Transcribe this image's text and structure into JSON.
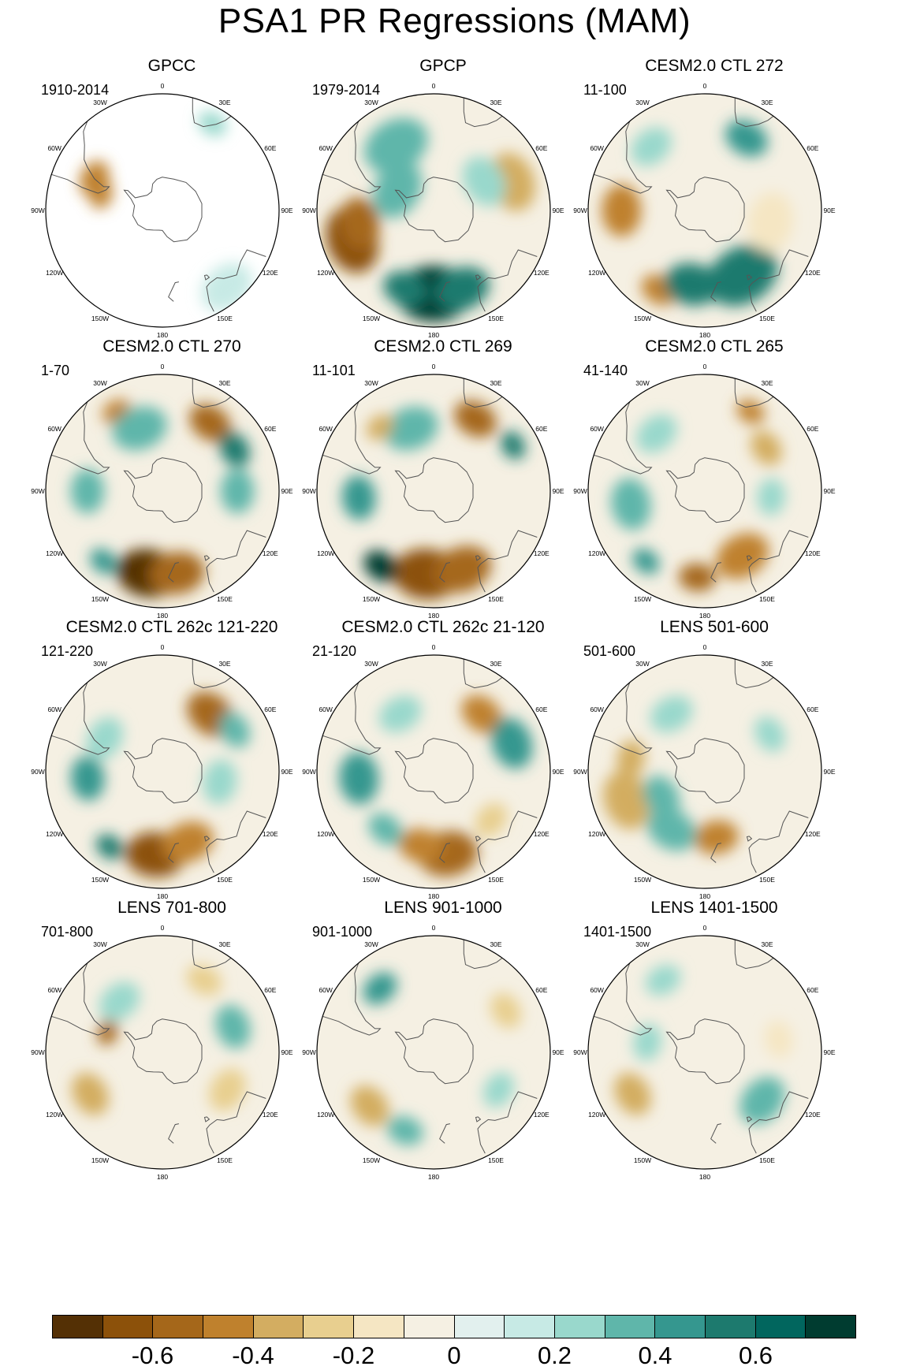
{
  "title": "PSA1 PR Regressions (MAM)",
  "lon_labels": [
    "0",
    "30E",
    "60E",
    "90E",
    "120E",
    "150E",
    "180",
    "150W",
    "120W",
    "90W",
    "60W",
    "30W"
  ],
  "panels": [
    {
      "title": "GPCC",
      "years": "1910-2014"
    },
    {
      "title": "GPCP",
      "years": "1979-2014"
    },
    {
      "title": "CESM2.0 CTL 272",
      "years": "11-100"
    },
    {
      "title": "CESM2.0 CTL 270",
      "years": "1-70"
    },
    {
      "title": "CESM2.0 CTL 269",
      "years": "11-101"
    },
    {
      "title": "CESM2.0 CTL 265",
      "years": "41-140"
    },
    {
      "title": "CESM2.0 CTL 262c 121-220",
      "years": "121-220"
    },
    {
      "title": "CESM2.0 CTL 262c 21-120",
      "years": "21-120"
    },
    {
      "title": "LENS 501-600",
      "years": "501-600"
    },
    {
      "title": "LENS 701-800",
      "years": "701-800"
    },
    {
      "title": "LENS 901-1000",
      "years": "901-1000"
    },
    {
      "title": "LENS 1401-1500",
      "years": "1401-1500"
    }
  ],
  "colorbar": {
    "colors": [
      "#543005",
      "#8c510a",
      "#a5671a",
      "#bf812d",
      "#d3ad61",
      "#e8cf8f",
      "#f5e6c3",
      "#f5f0e3",
      "#e2f0ee",
      "#c7eae5",
      "#99d8cc",
      "#5fb6aa",
      "#35978f",
      "#1d7a6e",
      "#01665e",
      "#003c30"
    ],
    "ticks": [
      "-0.6",
      "-0.4",
      "-0.2",
      "0",
      "0.2",
      "0.4",
      "0.6"
    ],
    "tick_values": [
      -0.6,
      -0.4,
      -0.2,
      0,
      0.2,
      0.4,
      0.6
    ],
    "range": [
      -0.8,
      0.8
    ]
  },
  "chart_data": {
    "type": "heatmap",
    "title": "PSA1 PR Regressions (MAM)",
    "projection": "south polar stereographic",
    "colorbar_range": [
      -0.8,
      0.8
    ],
    "colorbar_ticks": [
      -0.6,
      -0.4,
      -0.2,
      0,
      0.2,
      0.4,
      0.6
    ],
    "panels": [
      {
        "name": "GPCC",
        "period": "1910-2014",
        "features": [
          {
            "lon": -65,
            "lat": -45,
            "r": 0.1,
            "v": -0.5
          },
          {
            "lon": -75,
            "lat": -52,
            "r": 0.08,
            "v": -0.5
          },
          {
            "lon": 30,
            "lat": -30,
            "r": 0.08,
            "v": 0.2
          },
          {
            "lon": 140,
            "lat": -30,
            "r": 0.15,
            "v": 0.15
          }
        ]
      },
      {
        "name": "GPCP",
        "period": "1979-2014",
        "features": [
          {
            "lon": -110,
            "lat": -38,
            "r": 0.18,
            "v": -0.7
          },
          {
            "lon": -100,
            "lat": -45,
            "r": 0.14,
            "v": -0.55
          },
          {
            "lon": 180,
            "lat": -40,
            "r": 0.2,
            "v": 0.8
          },
          {
            "lon": 160,
            "lat": -40,
            "r": 0.15,
            "v": 0.6
          },
          {
            "lon": -160,
            "lat": -40,
            "r": 0.12,
            "v": 0.5
          },
          {
            "lon": -30,
            "lat": -45,
            "r": 0.18,
            "v": 0.3
          },
          {
            "lon": 70,
            "lat": -40,
            "r": 0.16,
            "v": -0.4
          },
          {
            "lon": 60,
            "lat": -55,
            "r": 0.14,
            "v": 0.25
          },
          {
            "lon": -60,
            "lat": -65,
            "r": 0.16,
            "v": 0.3
          }
        ]
      },
      {
        "name": "CESM2.0 CTL 272",
        "period": "11-100",
        "features": [
          {
            "lon": -90,
            "lat": -40,
            "r": 0.14,
            "v": -0.5
          },
          {
            "lon": -150,
            "lat": -35,
            "r": 0.1,
            "v": -0.5
          },
          {
            "lon": 150,
            "lat": -45,
            "r": 0.2,
            "v": 0.6
          },
          {
            "lon": -170,
            "lat": -45,
            "r": 0.15,
            "v": 0.55
          },
          {
            "lon": 30,
            "lat": -40,
            "r": 0.12,
            "v": 0.4
          },
          {
            "lon": 100,
            "lat": -50,
            "r": 0.16,
            "v": -0.2
          },
          {
            "lon": -40,
            "lat": -40,
            "r": 0.12,
            "v": 0.25
          }
        ]
      },
      {
        "name": "CESM2.0 CTL 270",
        "period": "1-70",
        "features": [
          {
            "lon": -170,
            "lat": -40,
            "r": 0.17,
            "v": -0.75
          },
          {
            "lon": 170,
            "lat": -40,
            "r": 0.15,
            "v": -0.6
          },
          {
            "lon": 35,
            "lat": -40,
            "r": 0.12,
            "v": -0.55
          },
          {
            "lon": -30,
            "lat": -35,
            "r": 0.08,
            "v": -0.5
          },
          {
            "lon": 60,
            "lat": -40,
            "r": 0.1,
            "v": 0.6
          },
          {
            "lon": -20,
            "lat": -50,
            "r": 0.15,
            "v": 0.35
          },
          {
            "lon": -90,
            "lat": -45,
            "r": 0.12,
            "v": 0.3
          },
          {
            "lon": -140,
            "lat": -35,
            "r": 0.08,
            "v": 0.45
          },
          {
            "lon": 90,
            "lat": -45,
            "r": 0.12,
            "v": 0.3
          }
        ]
      },
      {
        "name": "CESM2.0 CTL 269",
        "period": "11-101",
        "features": [
          {
            "lon": -175,
            "lat": -40,
            "r": 0.18,
            "v": -0.7
          },
          {
            "lon": 160,
            "lat": -40,
            "r": 0.16,
            "v": -0.55
          },
          {
            "lon": 30,
            "lat": -40,
            "r": 0.12,
            "v": -0.55
          },
          {
            "lon": -145,
            "lat": -35,
            "r": 0.1,
            "v": 0.7
          },
          {
            "lon": -95,
            "lat": -45,
            "r": 0.12,
            "v": 0.45
          },
          {
            "lon": 60,
            "lat": -35,
            "r": 0.08,
            "v": 0.5
          },
          {
            "lon": -20,
            "lat": -50,
            "r": 0.15,
            "v": 0.3
          },
          {
            "lon": -40,
            "lat": -40,
            "r": 0.08,
            "v": -0.35
          }
        ]
      },
      {
        "name": "CESM2.0 CTL 265",
        "period": "41-140",
        "features": [
          {
            "lon": 150,
            "lat": -45,
            "r": 0.15,
            "v": -0.5
          },
          {
            "lon": -175,
            "lat": -38,
            "r": 0.1,
            "v": -0.55
          },
          {
            "lon": 30,
            "lat": -35,
            "r": 0.08,
            "v": -0.5
          },
          {
            "lon": 55,
            "lat": -45,
            "r": 0.1,
            "v": -0.4
          },
          {
            "lon": -100,
            "lat": -45,
            "r": 0.14,
            "v": 0.35
          },
          {
            "lon": -140,
            "lat": -35,
            "r": 0.08,
            "v": 0.4
          },
          {
            "lon": -40,
            "lat": -45,
            "r": 0.12,
            "v": 0.25
          },
          {
            "lon": 95,
            "lat": -50,
            "r": 0.1,
            "v": 0.25
          }
        ]
      },
      {
        "name": "CESM2.0 CTL 262c 121-220",
        "period": "121-220",
        "features": [
          {
            "lon": -175,
            "lat": -40,
            "r": 0.16,
            "v": -0.7
          },
          {
            "lon": 160,
            "lat": -45,
            "r": 0.14,
            "v": -0.45
          },
          {
            "lon": 40,
            "lat": -45,
            "r": 0.14,
            "v": -0.55
          },
          {
            "lon": -95,
            "lat": -45,
            "r": 0.12,
            "v": 0.45
          },
          {
            "lon": -145,
            "lat": -35,
            "r": 0.08,
            "v": 0.5
          },
          {
            "lon": 60,
            "lat": -40,
            "r": 0.1,
            "v": 0.35
          },
          {
            "lon": -60,
            "lat": -50,
            "r": 0.12,
            "v": 0.25
          },
          {
            "lon": 100,
            "lat": -55,
            "r": 0.12,
            "v": 0.2
          }
        ]
      },
      {
        "name": "CESM2.0 CTL 262c 21-120",
        "period": "21-120",
        "features": [
          {
            "lon": 170,
            "lat": -40,
            "r": 0.16,
            "v": -0.6
          },
          {
            "lon": -170,
            "lat": -45,
            "r": 0.12,
            "v": -0.45
          },
          {
            "lon": 40,
            "lat": -45,
            "r": 0.12,
            "v": -0.45
          },
          {
            "lon": -95,
            "lat": -45,
            "r": 0.14,
            "v": 0.45
          },
          {
            "lon": 70,
            "lat": -40,
            "r": 0.14,
            "v": 0.4
          },
          {
            "lon": -140,
            "lat": -45,
            "r": 0.1,
            "v": 0.3
          },
          {
            "lon": 130,
            "lat": -45,
            "r": 0.1,
            "v": -0.3
          },
          {
            "lon": -30,
            "lat": -50,
            "r": 0.12,
            "v": 0.2
          }
        ]
      },
      {
        "name": "LENS 501-600",
        "period": "501-600",
        "features": [
          {
            "lon": -110,
            "lat": -40,
            "r": 0.16,
            "v": -0.4
          },
          {
            "lon": -80,
            "lat": -45,
            "r": 0.1,
            "v": -0.35
          },
          {
            "lon": 170,
            "lat": -50,
            "r": 0.12,
            "v": -0.45
          },
          {
            "lon": -150,
            "lat": -50,
            "r": 0.14,
            "v": 0.35
          },
          {
            "lon": -120,
            "lat": -60,
            "r": 0.12,
            "v": 0.3
          },
          {
            "lon": 60,
            "lat": -45,
            "r": 0.1,
            "v": 0.2
          },
          {
            "lon": -30,
            "lat": -50,
            "r": 0.12,
            "v": 0.2
          }
        ]
      },
      {
        "name": "LENS 701-800",
        "period": "701-800",
        "features": [
          {
            "lon": -70,
            "lat": -55,
            "r": 0.07,
            "v": -0.6
          },
          {
            "lon": -120,
            "lat": -40,
            "r": 0.12,
            "v": -0.35
          },
          {
            "lon": 70,
            "lat": -45,
            "r": 0.12,
            "v": 0.35
          },
          {
            "lon": -40,
            "lat": -50,
            "r": 0.12,
            "v": 0.25
          },
          {
            "lon": 30,
            "lat": -40,
            "r": 0.1,
            "v": -0.3
          },
          {
            "lon": 120,
            "lat": -45,
            "r": 0.12,
            "v": -0.25
          }
        ]
      },
      {
        "name": "LENS 901-1000",
        "period": "901-1000",
        "features": [
          {
            "lon": -40,
            "lat": -40,
            "r": 0.1,
            "v": 0.4
          },
          {
            "lon": -130,
            "lat": -40,
            "r": 0.12,
            "v": -0.35
          },
          {
            "lon": -160,
            "lat": -40,
            "r": 0.1,
            "v": 0.35
          },
          {
            "lon": 60,
            "lat": -40,
            "r": 0.1,
            "v": -0.3
          },
          {
            "lon": 120,
            "lat": -45,
            "r": 0.1,
            "v": 0.25
          }
        ]
      },
      {
        "name": "LENS 1401-1500",
        "period": "1401-1500",
        "features": [
          {
            "lon": 130,
            "lat": -45,
            "r": 0.14,
            "v": 0.35
          },
          {
            "lon": -120,
            "lat": -40,
            "r": 0.12,
            "v": -0.35
          },
          {
            "lon": -30,
            "lat": -40,
            "r": 0.1,
            "v": 0.25
          },
          {
            "lon": 80,
            "lat": -45,
            "r": 0.1,
            "v": -0.2
          },
          {
            "lon": -80,
            "lat": -55,
            "r": 0.1,
            "v": 0.25
          }
        ]
      }
    ]
  }
}
